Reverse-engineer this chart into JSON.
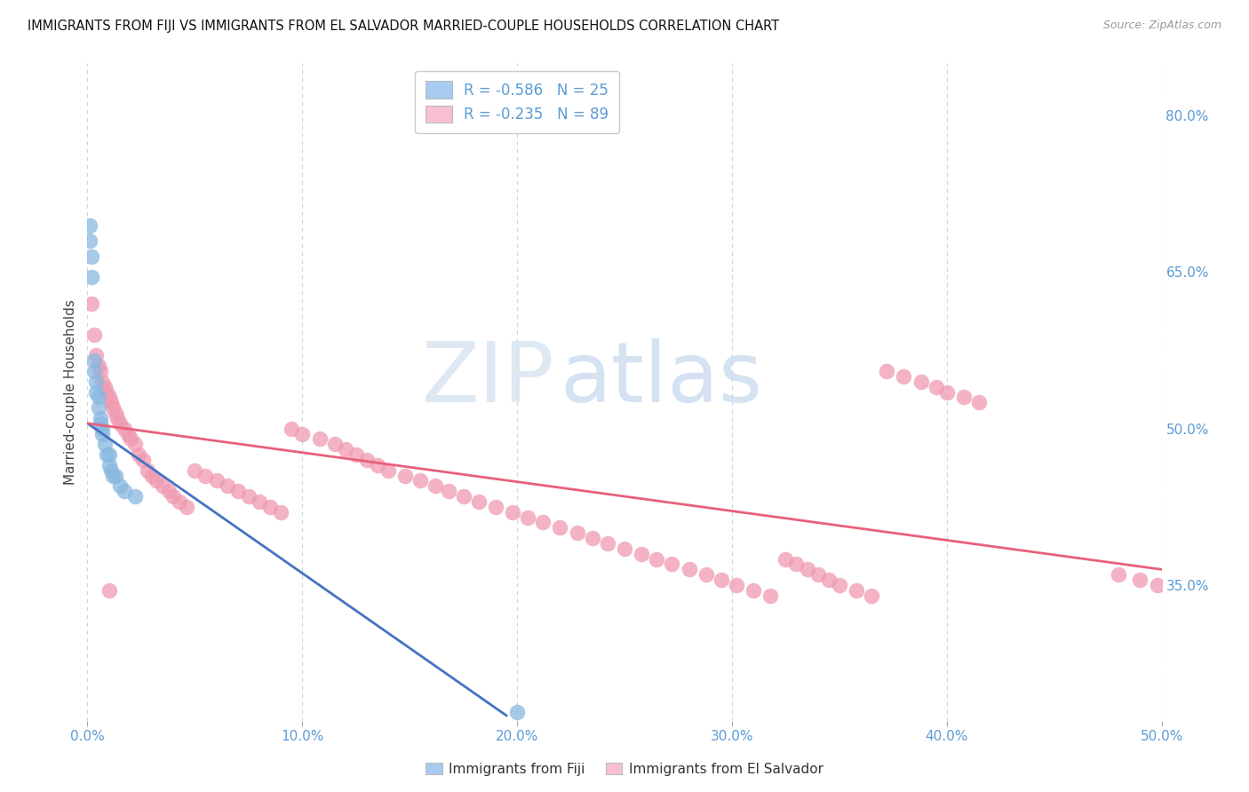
{
  "title": "IMMIGRANTS FROM FIJI VS IMMIGRANTS FROM EL SALVADOR MARRIED-COUPLE HOUSEHOLDS CORRELATION CHART",
  "source": "Source: ZipAtlas.com",
  "ylabel": "Married-couple Households",
  "xlim": [
    0.0,
    0.5
  ],
  "ylim": [
    0.22,
    0.85
  ],
  "xtick_vals": [
    0.0,
    0.1,
    0.2,
    0.3,
    0.4,
    0.5
  ],
  "ytick_vals": [
    0.35,
    0.5,
    0.65,
    0.8
  ],
  "ytick_labels": [
    "35.0%",
    "50.0%",
    "65.0%",
    "80.0%"
  ],
  "xtick_labels": [
    "0.0%",
    "10.0%",
    "20.0%",
    "30.0%",
    "40.0%",
    "50.0%"
  ],
  "fiji_scatter_color": "#89b8e0",
  "el_salvador_scatter_color": "#f09ab0",
  "fiji_legend_color": "#a8ccf0",
  "el_salvador_legend_color": "#f8c0d0",
  "fiji_line_color": "#4472c4",
  "el_salvador_line_color": "#e8607a",
  "legend_r_fiji": "-0.586",
  "legend_n_fiji": "25",
  "legend_r_el_salvador": "-0.235",
  "legend_n_el_salvador": "89",
  "fiji_line_x0": 0.0,
  "fiji_line_y0": 0.505,
  "fiji_line_x1": 0.195,
  "fiji_line_y1": 0.225,
  "el_salvador_line_x0": 0.0,
  "el_salvador_line_y0": 0.505,
  "el_salvador_line_x1": 0.5,
  "el_salvador_line_y1": 0.365,
  "fiji_x": [
    0.001,
    0.001,
    0.002,
    0.002,
    0.003,
    0.003,
    0.004,
    0.004,
    0.005,
    0.005,
    0.006,
    0.006,
    0.007,
    0.007,
    0.008,
    0.009,
    0.01,
    0.01,
    0.011,
    0.012,
    0.013,
    0.015,
    0.017,
    0.022,
    0.2
  ],
  "fiji_y": [
    0.695,
    0.68,
    0.665,
    0.645,
    0.565,
    0.555,
    0.545,
    0.535,
    0.53,
    0.52,
    0.51,
    0.505,
    0.5,
    0.495,
    0.485,
    0.475,
    0.475,
    0.465,
    0.46,
    0.455,
    0.455,
    0.445,
    0.44,
    0.435,
    0.228
  ],
  "el_salvador_x": [
    0.002,
    0.003,
    0.004,
    0.005,
    0.006,
    0.007,
    0.008,
    0.009,
    0.01,
    0.011,
    0.012,
    0.013,
    0.014,
    0.015,
    0.017,
    0.019,
    0.02,
    0.022,
    0.024,
    0.026,
    0.028,
    0.03,
    0.032,
    0.035,
    0.038,
    0.04,
    0.043,
    0.046,
    0.05,
    0.055,
    0.06,
    0.065,
    0.07,
    0.075,
    0.08,
    0.085,
    0.09,
    0.095,
    0.1,
    0.108,
    0.115,
    0.12,
    0.125,
    0.13,
    0.135,
    0.14,
    0.148,
    0.155,
    0.162,
    0.168,
    0.175,
    0.182,
    0.19,
    0.198,
    0.205,
    0.212,
    0.22,
    0.228,
    0.235,
    0.242,
    0.25,
    0.258,
    0.265,
    0.272,
    0.28,
    0.288,
    0.295,
    0.302,
    0.31,
    0.318,
    0.325,
    0.33,
    0.335,
    0.34,
    0.345,
    0.35,
    0.358,
    0.365,
    0.372,
    0.38,
    0.388,
    0.395,
    0.4,
    0.408,
    0.415,
    0.48,
    0.49,
    0.498,
    0.01
  ],
  "el_salvador_y": [
    0.62,
    0.59,
    0.57,
    0.56,
    0.555,
    0.545,
    0.54,
    0.535,
    0.53,
    0.525,
    0.52,
    0.515,
    0.51,
    0.505,
    0.5,
    0.495,
    0.49,
    0.485,
    0.475,
    0.47,
    0.46,
    0.455,
    0.45,
    0.445,
    0.44,
    0.435,
    0.43,
    0.425,
    0.46,
    0.455,
    0.45,
    0.445,
    0.44,
    0.435,
    0.43,
    0.425,
    0.42,
    0.5,
    0.495,
    0.49,
    0.485,
    0.48,
    0.475,
    0.47,
    0.465,
    0.46,
    0.455,
    0.45,
    0.445,
    0.44,
    0.435,
    0.43,
    0.425,
    0.42,
    0.415,
    0.41,
    0.405,
    0.4,
    0.395,
    0.39,
    0.385,
    0.38,
    0.375,
    0.37,
    0.365,
    0.36,
    0.355,
    0.35,
    0.345,
    0.34,
    0.375,
    0.37,
    0.365,
    0.36,
    0.355,
    0.35,
    0.345,
    0.34,
    0.555,
    0.55,
    0.545,
    0.54,
    0.535,
    0.53,
    0.525,
    0.36,
    0.355,
    0.35,
    0.345
  ],
  "watermark_zip": "ZIP",
  "watermark_atlas": "atlas",
  "background_color": "#ffffff",
  "grid_color": "#c8d4e4",
  "axis_label_color": "#5b9bd5",
  "ylabel_color": "#444444"
}
